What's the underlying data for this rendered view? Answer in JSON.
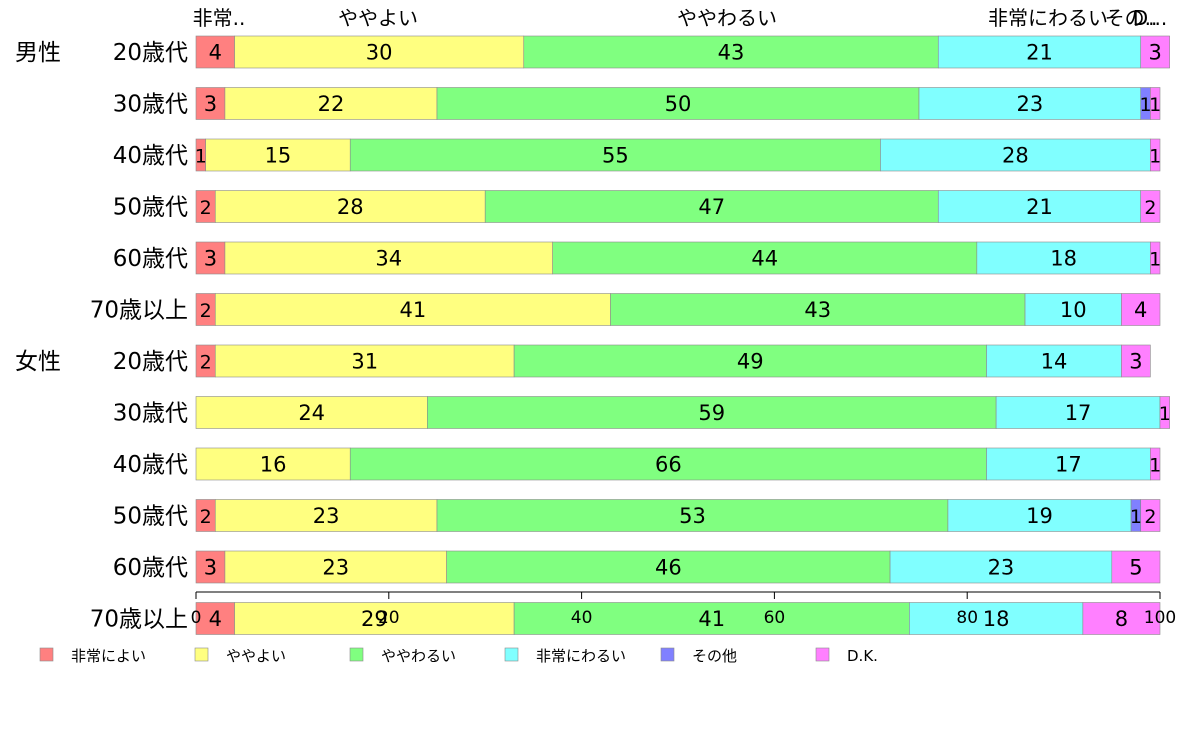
{
  "chart_data": {
    "type": "bar",
    "orientation": "horizontal",
    "stacked": true,
    "xlim": [
      0,
      100
    ],
    "x_ticks": [
      0,
      20,
      40,
      60,
      80,
      100
    ],
    "top_labels": [
      "非常..",
      "ややよい",
      "ややわるい",
      "非常にわるい",
      "その..",
      "D..."
    ],
    "group_labels": [
      {
        "label": "男性",
        "row": 0
      },
      {
        "label": "女性",
        "row": 6
      }
    ],
    "categories": [
      "20歳代",
      "30歳代",
      "40歳代",
      "50歳代",
      "60歳代",
      "70歳以上",
      "20歳代",
      "30歳代",
      "40歳代",
      "50歳代",
      "60歳代",
      "70歳以上"
    ],
    "series": [
      {
        "name": "非常によい",
        "color": "#ff8080",
        "values": [
          4,
          3,
          1,
          2,
          3,
          2,
          2,
          0,
          0,
          2,
          3,
          4
        ]
      },
      {
        "name": "ややよい",
        "color": "#ffff80",
        "values": [
          30,
          22,
          15,
          28,
          34,
          41,
          31,
          24,
          16,
          23,
          23,
          29
        ]
      },
      {
        "name": "ややわるい",
        "color": "#80ff80",
        "values": [
          43,
          50,
          55,
          47,
          44,
          43,
          49,
          59,
          66,
          53,
          46,
          41
        ]
      },
      {
        "name": "非常にわるい",
        "color": "#80ffff",
        "values": [
          21,
          23,
          28,
          21,
          18,
          10,
          14,
          17,
          17,
          19,
          23,
          18
        ]
      },
      {
        "name": "その他",
        "color": "#8080ff",
        "values": [
          0,
          1,
          0,
          0,
          0,
          0,
          0,
          0,
          0,
          1,
          0,
          0
        ]
      },
      {
        "name": "D.K.",
        "color": "#ff80ff",
        "values": [
          3,
          1,
          1,
          2,
          1,
          4,
          3,
          1,
          1,
          2,
          5,
          8
        ]
      }
    ],
    "legend_position": "bottom",
    "grid": false
  }
}
